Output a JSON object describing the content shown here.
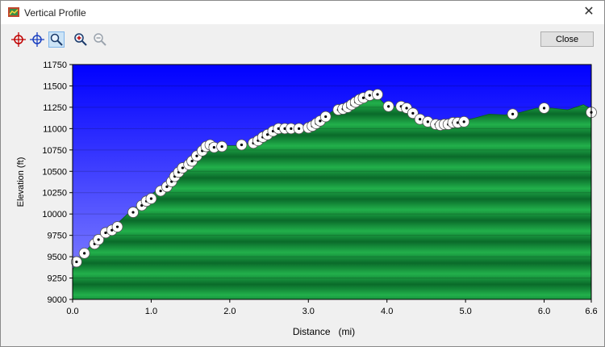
{
  "window": {
    "title": "Vertical Profile",
    "close_glyph": "✕"
  },
  "toolbar": {
    "close_label": "Close",
    "icons": [
      "crosshair-red-icon",
      "crosshair-blue-icon",
      "zoom-window-icon",
      "zoom-in-icon",
      "zoom-out-icon"
    ]
  },
  "colors": {
    "sky_top": "#0000ff",
    "sky_bottom": "#8c8cff",
    "terrain_dark": "#0a6a2a",
    "terrain_light": "#22b04b"
  },
  "chart_data": {
    "type": "area",
    "xlabel": "Distance   (mi)",
    "ylabel": "Elevation (ft)",
    "xlim": [
      0,
      6.6
    ],
    "ylim": [
      9000,
      11750
    ],
    "x_ticks": [
      "0.0",
      "1.0",
      "2.0",
      "3.0",
      "4.0",
      "5.0",
      "6.0",
      "6.6"
    ],
    "y_ticks": [
      "9000",
      "9250",
      "9500",
      "9750",
      "10000",
      "10250",
      "10500",
      "10750",
      "11000",
      "11250",
      "11500",
      "11750"
    ],
    "profile": [
      [
        0,
        9350
      ],
      [
        0.1,
        9500
      ],
      [
        0.3,
        9700
      ],
      [
        0.5,
        9830
      ],
      [
        0.7,
        10000
      ],
      [
        0.9,
        10150
      ],
      [
        1.1,
        10300
      ],
      [
        1.3,
        10480
      ],
      [
        1.5,
        10600
      ],
      [
        1.7,
        10780
      ],
      [
        1.9,
        10800
      ],
      [
        2.1,
        10800
      ],
      [
        2.3,
        10840
      ],
      [
        2.5,
        10950
      ],
      [
        2.7,
        11000
      ],
      [
        2.9,
        11000
      ],
      [
        3.1,
        11050
      ],
      [
        3.3,
        11200
      ],
      [
        3.5,
        11250
      ],
      [
        3.7,
        11370
      ],
      [
        3.85,
        11400
      ],
      [
        4.0,
        11260
      ],
      [
        4.2,
        11260
      ],
      [
        4.3,
        11170
      ],
      [
        4.5,
        11070
      ],
      [
        4.7,
        11050
      ],
      [
        4.9,
        11080
      ],
      [
        5.1,
        11120
      ],
      [
        5.3,
        11170
      ],
      [
        5.5,
        11160
      ],
      [
        5.7,
        11190
      ],
      [
        5.9,
        11240
      ],
      [
        6.1,
        11240
      ],
      [
        6.3,
        11220
      ],
      [
        6.5,
        11280
      ],
      [
        6.6,
        11230
      ]
    ],
    "waypoints": [
      [
        0.05,
        9440
      ],
      [
        0.15,
        9540
      ],
      [
        0.28,
        9650
      ],
      [
        0.33,
        9700
      ],
      [
        0.42,
        9780
      ],
      [
        0.5,
        9810
      ],
      [
        0.57,
        9850
      ],
      [
        0.77,
        10020
      ],
      [
        0.88,
        10100
      ],
      [
        0.94,
        10150
      ],
      [
        1.0,
        10180
      ],
      [
        1.12,
        10270
      ],
      [
        1.2,
        10320
      ],
      [
        1.26,
        10380
      ],
      [
        1.3,
        10440
      ],
      [
        1.35,
        10490
      ],
      [
        1.4,
        10540
      ],
      [
        1.48,
        10580
      ],
      [
        1.52,
        10620
      ],
      [
        1.58,
        10680
      ],
      [
        1.65,
        10740
      ],
      [
        1.7,
        10790
      ],
      [
        1.75,
        10810
      ],
      [
        1.8,
        10780
      ],
      [
        1.9,
        10790
      ],
      [
        2.15,
        10810
      ],
      [
        2.3,
        10830
      ],
      [
        2.36,
        10860
      ],
      [
        2.42,
        10900
      ],
      [
        2.48,
        10930
      ],
      [
        2.55,
        10970
      ],
      [
        2.62,
        11000
      ],
      [
        2.7,
        11000
      ],
      [
        2.78,
        11000
      ],
      [
        2.88,
        11000
      ],
      [
        3.0,
        11010
      ],
      [
        3.05,
        11030
      ],
      [
        3.1,
        11060
      ],
      [
        3.15,
        11090
      ],
      [
        3.22,
        11140
      ],
      [
        3.38,
        11220
      ],
      [
        3.44,
        11230
      ],
      [
        3.5,
        11250
      ],
      [
        3.55,
        11280
      ],
      [
        3.6,
        11310
      ],
      [
        3.65,
        11340
      ],
      [
        3.7,
        11360
      ],
      [
        3.78,
        11390
      ],
      [
        3.88,
        11400
      ],
      [
        4.02,
        11260
      ],
      [
        4.18,
        11260
      ],
      [
        4.25,
        11240
      ],
      [
        4.33,
        11180
      ],
      [
        4.42,
        11110
      ],
      [
        4.52,
        11080
      ],
      [
        4.62,
        11050
      ],
      [
        4.68,
        11040
      ],
      [
        4.73,
        11050
      ],
      [
        4.78,
        11050
      ],
      [
        4.84,
        11070
      ],
      [
        4.9,
        11070
      ],
      [
        4.98,
        11080
      ],
      [
        5.6,
        11170
      ],
      [
        6.0,
        11240
      ],
      [
        6.6,
        11190
      ]
    ]
  }
}
